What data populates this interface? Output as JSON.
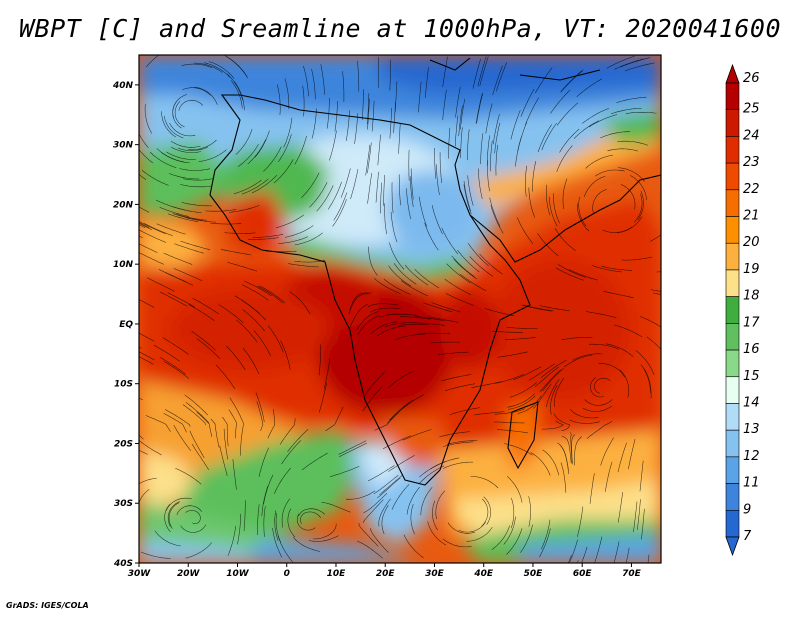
{
  "title": "WBPT [C] and Sreamline at 1000hPa, VT: 2020041600",
  "footer": "GrADS: IGES/COLA",
  "chart_data": {
    "type": "heatmap",
    "variable": "Wet-bulb potential temperature with streamlines",
    "level": "1000hPa",
    "valid_time": "2020041600",
    "xlim": [
      -30,
      76
    ],
    "ylim": [
      -40,
      45
    ],
    "x_ticks": [
      {
        "value": -30,
        "label": "30W"
      },
      {
        "value": -20,
        "label": "20W"
      },
      {
        "value": -10,
        "label": "10W"
      },
      {
        "value": 0,
        "label": "0"
      },
      {
        "value": 10,
        "label": "10E"
      },
      {
        "value": 20,
        "label": "20E"
      },
      {
        "value": 30,
        "label": "30E"
      },
      {
        "value": 40,
        "label": "40E"
      },
      {
        "value": 50,
        "label": "50E"
      },
      {
        "value": 60,
        "label": "60E"
      },
      {
        "value": 70,
        "label": "70E"
      }
    ],
    "y_ticks": [
      {
        "value": 40,
        "label": "40N"
      },
      {
        "value": 30,
        "label": "30N"
      },
      {
        "value": 20,
        "label": "20N"
      },
      {
        "value": 10,
        "label": "10N"
      },
      {
        "value": 0,
        "label": "EQ"
      },
      {
        "value": -10,
        "label": "10S"
      },
      {
        "value": -20,
        "label": "20S"
      },
      {
        "value": -30,
        "label": "30S"
      },
      {
        "value": -40,
        "label": "40S"
      }
    ],
    "colorbar": {
      "labels": [
        "26",
        "25",
        "24",
        "23",
        "22",
        "21",
        "20",
        "19",
        "18",
        "17",
        "16",
        "15",
        "14",
        "13",
        "12",
        "11",
        "9",
        "7"
      ],
      "colors": [
        "#b40000",
        "#cc1a00",
        "#e02d00",
        "#ee4a00",
        "#f76e00",
        "#fc9000",
        "#fcb040",
        "#fde08a",
        "#3fae3f",
        "#60c060",
        "#8ad98a",
        "#e6fff0",
        "#b0dcf7",
        "#86c2f0",
        "#5aa3e6",
        "#3d85dc",
        "#2568d0"
      ]
    }
  }
}
